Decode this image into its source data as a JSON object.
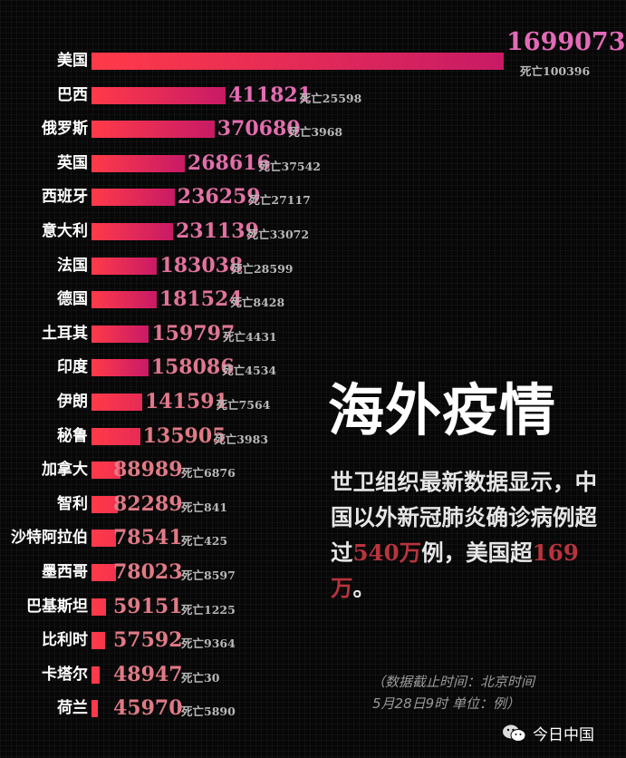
{
  "chart_data": {
    "type": "bar",
    "orientation": "horizontal",
    "death_prefix": "死亡",
    "categories": [
      "美国",
      "巴西",
      "俄罗斯",
      "英国",
      "西班牙",
      "意大利",
      "法国",
      "德国",
      "土耳其",
      "印度",
      "伊朗",
      "秘鲁",
      "加拿大",
      "智利",
      "沙特阿拉伯",
      "墨西哥",
      "巴基斯坦",
      "比利时",
      "卡塔尔",
      "荷兰"
    ],
    "series": [
      {
        "values": [
          1699073,
          411821,
          370680,
          268616,
          236259,
          231139,
          183038,
          181524,
          159797,
          158086,
          141591,
          135905,
          88989,
          82289,
          78541,
          78023,
          59151,
          57592,
          48947,
          45970
        ]
      }
    ],
    "deaths": [
      100396,
      25598,
      3968,
      37542,
      27117,
      33072,
      28599,
      8428,
      4431,
      4534,
      7564,
      3983,
      6876,
      841,
      425,
      8597,
      1225,
      9364,
      30,
      5890
    ],
    "bar_colors": [
      "#ff3a48",
      "#c81a66"
    ],
    "value_color_top": "#e46ab8",
    "value_color_bottom": "#e07a86"
  },
  "headline": "海外疫情",
  "body": {
    "part1": "世卫组织最新数据显示，中国以外新冠肺炎确诊病例超过",
    "num1": "540万",
    "part2": "例，美国超",
    "num2": "169万",
    "part3": "。"
  },
  "note": {
    "line1": "（数据截止时间：北京时间",
    "line2": "5月28日9时 单位：例）"
  },
  "logo": {
    "icon": "wechat-icon",
    "text": "今日中国"
  }
}
